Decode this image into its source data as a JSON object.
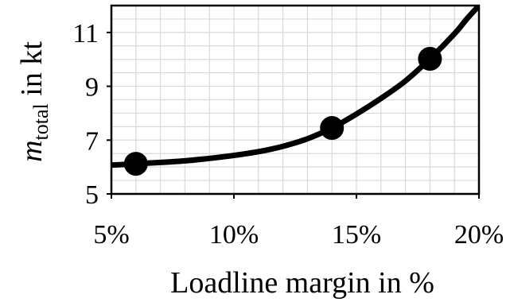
{
  "chart_data": {
    "type": "line",
    "title": "",
    "xlabel": "Loadline margin in %",
    "ylabel": {
      "symbol": "m",
      "subscript": "total",
      "suffix": " in kt"
    },
    "xlim": [
      0.05,
      0.2
    ],
    "ylim": [
      5,
      12
    ],
    "x_ticks": [
      {
        "value": 0.05,
        "label": "5%"
      },
      {
        "value": 0.1,
        "label": "10%"
      },
      {
        "value": 0.15,
        "label": "15%"
      },
      {
        "value": 0.2,
        "label": "20%"
      }
    ],
    "y_ticks": [
      {
        "value": 5,
        "label": "5"
      },
      {
        "value": 7,
        "label": "7"
      },
      {
        "value": 9,
        "label": "9"
      },
      {
        "value": 11,
        "label": "11"
      }
    ],
    "minor_grid_x_step": 0.01,
    "minor_grid_y_step": 0.5,
    "grid": true,
    "series": [
      {
        "kind": "curve",
        "color": "#000000",
        "points": [
          [
            0.05,
            6.07
          ],
          [
            0.06,
            6.12
          ],
          [
            0.07,
            6.17
          ],
          [
            0.08,
            6.23
          ],
          [
            0.09,
            6.32
          ],
          [
            0.1,
            6.43
          ],
          [
            0.11,
            6.57
          ],
          [
            0.12,
            6.77
          ],
          [
            0.13,
            7.05
          ],
          [
            0.14,
            7.45
          ],
          [
            0.15,
            7.97
          ],
          [
            0.16,
            8.55
          ],
          [
            0.17,
            9.2
          ],
          [
            0.18,
            10.02
          ],
          [
            0.19,
            10.95
          ],
          [
            0.195,
            11.5
          ],
          [
            0.2,
            12.0
          ]
        ]
      },
      {
        "kind": "markers",
        "color": "#000000",
        "points": [
          [
            0.06,
            6.12
          ],
          [
            0.14,
            7.45
          ],
          [
            0.18,
            10.02
          ]
        ]
      }
    ]
  }
}
